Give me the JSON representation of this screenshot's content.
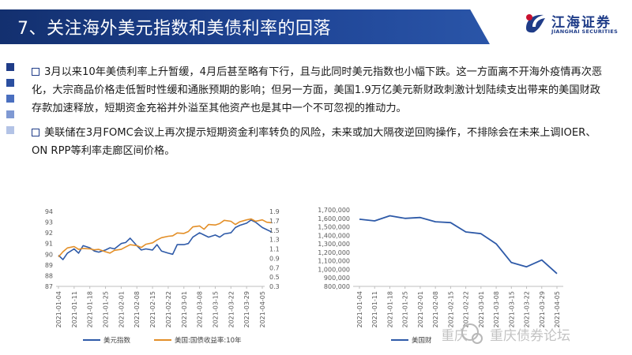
{
  "header": {
    "title": "7、关注海外美元指数和美债利率的回落",
    "logo_cn": "江海证券",
    "logo_en": "JIANGHAI SECURITIES"
  },
  "colors": {
    "title_bg": "#1f3c88",
    "series_blue": "#2e5aa8",
    "series_orange": "#e38f28",
    "decor_blocks": [
      "#1f3c88",
      "#2b4fa0",
      "#4a6fbf",
      "#7f99d3",
      "#b3c3e6"
    ]
  },
  "paragraphs": [
    "3月以来10年美债利率上升暂缓，4月后甚至略有下行，且与此同时美元指数也小幅下跌。这一方面离不开海外疫情再次恶化，大宗商品价格走低暂时性缓和通胀预期的影响；但另一方面，美国1.9万亿美元新财政刺激计划陆续支出带来的美国财政存款加速释放，短期资金充裕并外溢至其他资产也是其中一个不可忽视的推动力。",
    "美联储在3月FOMC会议上再次提示短期资金利率转负的风险，未来或加大隔夜逆回购操作，不排除会在未来上调IOER、ON RPP等利率走廊区间价格。"
  ],
  "chart_data": [
    {
      "type": "line",
      "x": [
        "2021-01-04",
        "2021-01-11",
        "2021-01-18",
        "2021-01-25",
        "2021-02-01",
        "2021-02-08",
        "2021-02-15",
        "2021-02-22",
        "2021-03-01",
        "2021-03-08",
        "2021-03-15",
        "2021-03-22",
        "2021-03-29",
        "2021-04-05"
      ],
      "series": [
        {
          "name": "美元指数",
          "axis": "left",
          "color": "#2e5aa8",
          "x": [
            "2021-01-04",
            "2021-01-06",
            "2021-01-08",
            "2021-01-11",
            "2021-01-13",
            "2021-01-15",
            "2021-01-18",
            "2021-01-20",
            "2021-01-22",
            "2021-01-25",
            "2021-01-27",
            "2021-01-29",
            "2021-02-01",
            "2021-02-03",
            "2021-02-05",
            "2021-02-08",
            "2021-02-10",
            "2021-02-12",
            "2021-02-15",
            "2021-02-17",
            "2021-02-19",
            "2021-02-22",
            "2021-02-24",
            "2021-02-26",
            "2021-03-01",
            "2021-03-03",
            "2021-03-05",
            "2021-03-08",
            "2021-03-10",
            "2021-03-12",
            "2021-03-15",
            "2021-03-17",
            "2021-03-19",
            "2021-03-22",
            "2021-03-24",
            "2021-03-26",
            "2021-03-29",
            "2021-03-31",
            "2021-04-02",
            "2021-04-05",
            "2021-04-07",
            "2021-04-09"
          ],
          "values": [
            89.9,
            89.5,
            90.1,
            90.5,
            90.1,
            90.8,
            90.6,
            90.3,
            90.2,
            90.4,
            90.6,
            90.5,
            91.0,
            91.1,
            91.5,
            90.8,
            90.4,
            90.5,
            90.4,
            90.9,
            90.3,
            90.1,
            90.0,
            90.9,
            90.9,
            91.0,
            91.6,
            92.0,
            91.8,
            91.6,
            91.8,
            91.6,
            91.9,
            92.0,
            92.5,
            92.7,
            92.9,
            93.2,
            93.0,
            92.5,
            92.3,
            92.1
          ]
        },
        {
          "name": "美国:国债收益率:10年",
          "axis": "right",
          "color": "#e38f28",
          "x": [
            "2021-01-04",
            "2021-01-06",
            "2021-01-08",
            "2021-01-11",
            "2021-01-13",
            "2021-01-15",
            "2021-01-18",
            "2021-01-20",
            "2021-01-22",
            "2021-01-25",
            "2021-01-27",
            "2021-01-29",
            "2021-02-01",
            "2021-02-03",
            "2021-02-05",
            "2021-02-08",
            "2021-02-10",
            "2021-02-12",
            "2021-02-15",
            "2021-02-17",
            "2021-02-19",
            "2021-02-22",
            "2021-02-24",
            "2021-02-26",
            "2021-03-01",
            "2021-03-03",
            "2021-03-05",
            "2021-03-08",
            "2021-03-10",
            "2021-03-12",
            "2021-03-15",
            "2021-03-17",
            "2021-03-19",
            "2021-03-22",
            "2021-03-24",
            "2021-03-26",
            "2021-03-29",
            "2021-03-31",
            "2021-04-02",
            "2021-04-05",
            "2021-04-07",
            "2021-04-09"
          ],
          "values": [
            0.93,
            1.04,
            1.12,
            1.15,
            1.09,
            1.11,
            1.1,
            1.08,
            1.09,
            1.04,
            1.01,
            1.07,
            1.09,
            1.14,
            1.19,
            1.17,
            1.13,
            1.2,
            1.23,
            1.29,
            1.34,
            1.37,
            1.38,
            1.44,
            1.43,
            1.47,
            1.57,
            1.59,
            1.52,
            1.62,
            1.61,
            1.64,
            1.71,
            1.69,
            1.62,
            1.68,
            1.72,
            1.74,
            1.69,
            1.72,
            1.67,
            1.66
          ]
        }
      ],
      "y_left": {
        "min": 87,
        "max": 94,
        "ticks": [
          87,
          88,
          89,
          90,
          91,
          92,
          93,
          94
        ]
      },
      "y_right": {
        "min": 0.3,
        "max": 1.9,
        "ticks": [
          "0.3",
          "0.5",
          "0.7",
          "0.9",
          "1.1",
          "1.3",
          "1.5",
          "1.7",
          "1.9"
        ]
      },
      "legend": [
        "美元指数",
        "美国:国债收益率:10年"
      ],
      "legend_position": "bottom",
      "grid": false
    },
    {
      "type": "line",
      "x": [
        "2021-01-04",
        "2021-01-11",
        "2021-01-18",
        "2021-01-25",
        "2021-02-01",
        "2021-02-08",
        "2021-02-15",
        "2021-02-22",
        "2021-03-01",
        "2021-03-08",
        "2021-03-15",
        "2021-03-22",
        "2021-03-29",
        "2021-04-05"
      ],
      "series": [
        {
          "name": "美国财",
          "color": "#2e5aa8",
          "values": [
            1590000,
            1570000,
            1630000,
            1600000,
            1610000,
            1560000,
            1550000,
            1440000,
            1420000,
            1300000,
            1080000,
            1030000,
            1110000,
            950000
          ]
        }
      ],
      "y": {
        "min": 800000,
        "max": 1700000,
        "ticks": [
          "800,000",
          "900,000",
          "1,000,000",
          "1,100,000",
          "1,200,000",
          "1,300,000",
          "1,400,000",
          "1,500,000",
          "1,600,000",
          "1,700,000"
        ]
      },
      "legend": [
        "美国财"
      ],
      "legend_position": "bottom",
      "grid": false
    }
  ],
  "watermark": {
    "text_left": "重庆",
    "text_right": "重庆债券论坛"
  }
}
